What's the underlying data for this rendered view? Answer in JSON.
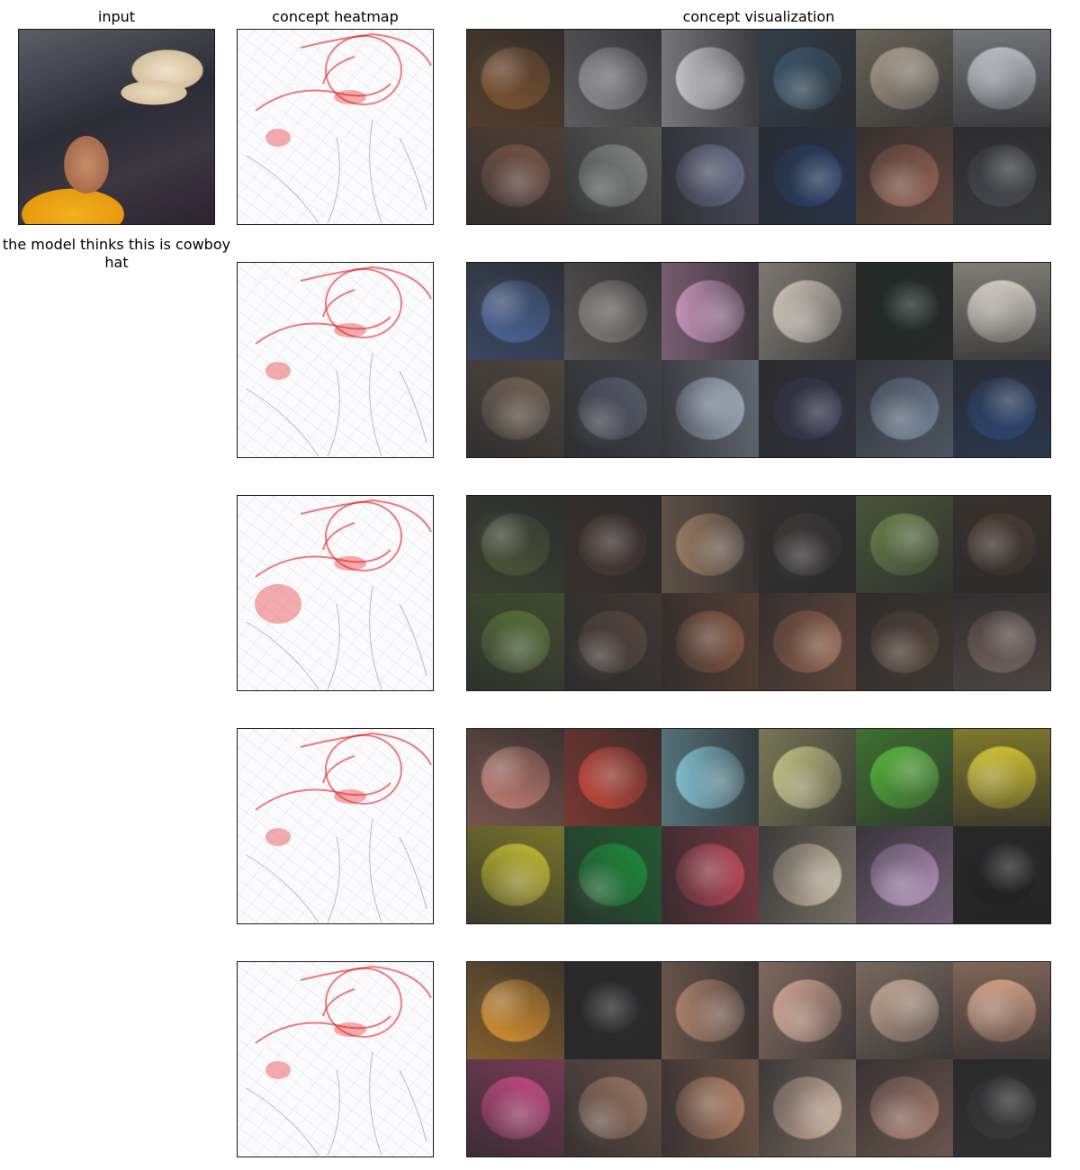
{
  "columns": {
    "input": "input",
    "heatmap": "concept heatmap",
    "visualization": "concept visualization"
  },
  "prediction_caption": "the model thinks this is cowboy hat",
  "concepts": [
    {
      "tiles": [
        "#8a5a2e",
        "#9c9a9e",
        "#d8d8dc",
        "#3c5a70",
        "#b7ad95",
        "#cfd3da",
        "#7e5a48",
        "#8f938e",
        "#6d7290",
        "#26416e",
        "#a36b55",
        "#4b4d52"
      ]
    },
    {
      "tiles": [
        "#4f6ea8",
        "#8c8682",
        "#d8a0c8",
        "#e6ddcc",
        "#1e2a24",
        "#ece6d8",
        "#7a6a58",
        "#5d6270",
        "#a8b6c8",
        "#3a3a55",
        "#7a8ea6",
        "#2c4a7a"
      ]
    },
    {
      "tiles": [
        "#4f5a3a",
        "#4a3a34",
        "#a38468",
        "#3e3a38",
        "#6f8a4c",
        "#4a3e30",
        "#5d7a3a",
        "#5a4a40",
        "#8a5a40",
        "#a06a50",
        "#5a4a3a",
        "#7a6860"
      ]
    },
    {
      "tiles": [
        "#d88a7a",
        "#d84a3a",
        "#8ad0e0",
        "#d8d890",
        "#5ac83a",
        "#e8d830",
        "#d8d030",
        "#1a9a3a",
        "#c84a5a",
        "#d8ccb0",
        "#c8a0d0",
        "#202020"
      ]
    },
    {
      "tiles": [
        "#f0a030",
        "#2a2a2a",
        "#b88a70",
        "#e8b8a0",
        "#d8b8a0",
        "#e8b090",
        "#d8508a",
        "#a88068",
        "#c08868",
        "#e0c0a8",
        "#b88a78",
        "#3a3a3a"
      ]
    }
  ]
}
